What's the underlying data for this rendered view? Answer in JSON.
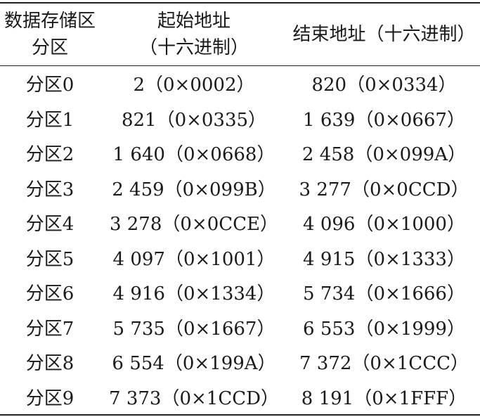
{
  "headers": {
    "col1": [
      "数据存储区",
      "分区"
    ],
    "col2": [
      "起始地址",
      "（十六进制）"
    ],
    "col3": [
      "结束地址（十六进制）"
    ]
  },
  "rows": [
    {
      "partition": "分区0",
      "start": "2（0×0002）",
      "end": "820（0×0334）"
    },
    {
      "partition": "分区1",
      "start": "821（0×0335）",
      "end": "1 639（0×0667）"
    },
    {
      "partition": "分区2",
      "start": "1 640（0×0668）",
      "end": "2 458（0×099A）"
    },
    {
      "partition": "分区3",
      "start": "2 459（0×099B）",
      "end": "3 277（0×0CCD）"
    },
    {
      "partition": "分区4",
      "start": "3 278（0×0CCE）",
      "end": "4 096（0×1000）"
    },
    {
      "partition": "分区5",
      "start": "4 097（0×1001）",
      "end": "4 915（0×1333）"
    },
    {
      "partition": "分区6",
      "start": "4 916（0×1334）",
      "end": "5 734（0×1666）"
    },
    {
      "partition": "分区7",
      "start": "5 735（0×1667）",
      "end": "6 553（0×1999）"
    },
    {
      "partition": "分区8",
      "start": "6 554（0×199A）",
      "end": "7 372（0×1CCC）"
    },
    {
      "partition": "分区9",
      "start": "7 373（0×1CCD）",
      "end": "8 191（0×1FFF）"
    }
  ]
}
